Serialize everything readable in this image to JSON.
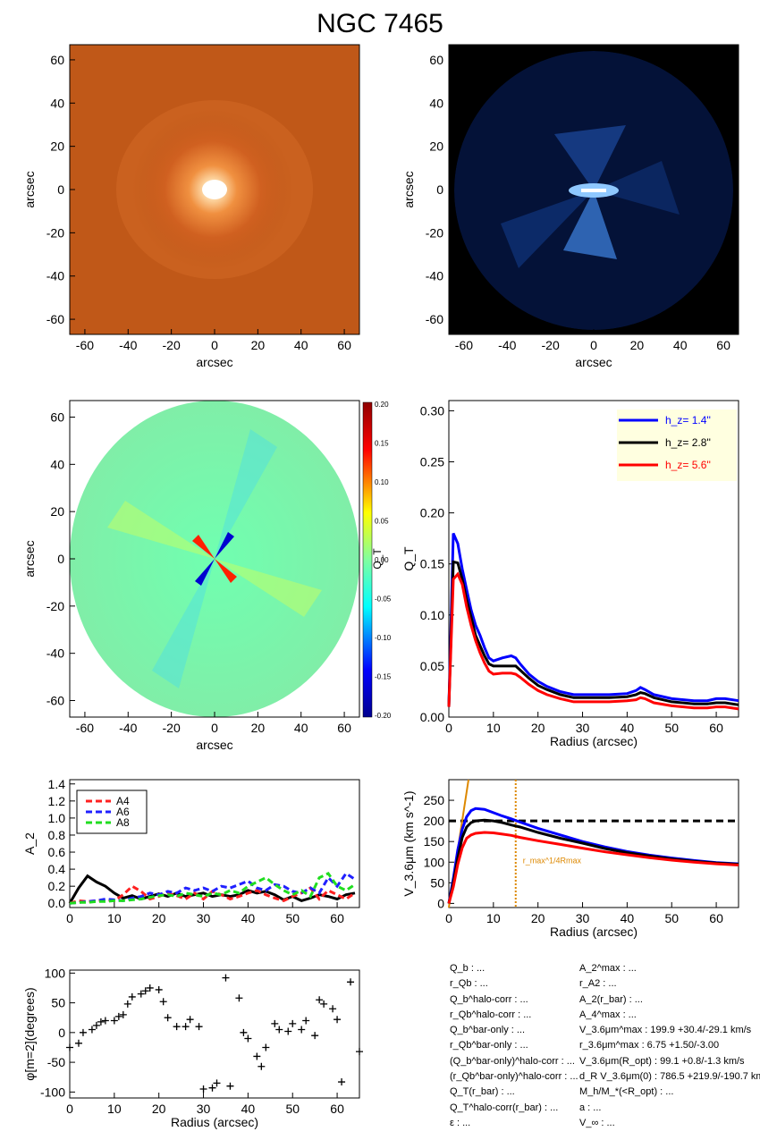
{
  "title": "NGC 7465",
  "panels": {
    "image_left": {
      "xlabel": "arcsec",
      "ylabel": "arcsec",
      "ticks": [
        -60,
        -40,
        -20,
        0,
        20,
        40,
        60
      ]
    },
    "image_right": {
      "xlabel": "arcsec",
      "ylabel": "arcsec",
      "ticks": [
        -60,
        -40,
        -20,
        0,
        20,
        40,
        60
      ]
    },
    "qt_map": {
      "xlabel": "arcsec",
      "ylabel": "arcsec",
      "ticks": [
        -60,
        -40,
        -20,
        0,
        20,
        40,
        60
      ],
      "colorbar_label": "Q_T",
      "colorbar_ticks": [
        "0.20",
        "0.15",
        "0.10",
        "0.05",
        "0.00",
        "-0.05",
        "-0.10",
        "-0.15",
        "-0.20"
      ],
      "colors": {
        "low": "#00008f",
        "mid": "#80ffa0",
        "high": "#8f0000"
      }
    }
  },
  "chart_data": [
    {
      "type": "line",
      "id": "qt_profile",
      "xlabel": "Radius (arcsec)",
      "ylabel": "Q_T",
      "xlim": [
        0,
        65
      ],
      "ylim": [
        0,
        0.31
      ],
      "xticks": [
        0,
        10,
        20,
        30,
        40,
        50,
        60
      ],
      "yticks": [
        "0.00",
        "0.05",
        "0.10",
        "0.15",
        "0.20",
        "0.25",
        "0.30"
      ],
      "legend_position": "top-right",
      "x": [
        0,
        1,
        2,
        3,
        4,
        5,
        6,
        7,
        8,
        9,
        10,
        12,
        14,
        15,
        16,
        18,
        20,
        22,
        25,
        28,
        30,
        33,
        36,
        40,
        42,
        43,
        44,
        46,
        50,
        55,
        58,
        60,
        62,
        65
      ],
      "series": [
        {
          "name": "h_z= 1.4''",
          "color": "#0000ff",
          "values": [
            0.01,
            0.18,
            0.17,
            0.145,
            0.125,
            0.105,
            0.09,
            0.08,
            0.068,
            0.058,
            0.055,
            0.058,
            0.06,
            0.058,
            0.052,
            0.042,
            0.035,
            0.03,
            0.025,
            0.022,
            0.022,
            0.022,
            0.022,
            0.023,
            0.026,
            0.029,
            0.027,
            0.022,
            0.018,
            0.016,
            0.016,
            0.018,
            0.018,
            0.016
          ]
        },
        {
          "name": "h_z= 2.8''",
          "color": "#000000",
          "values": [
            0.01,
            0.152,
            0.151,
            0.135,
            0.115,
            0.098,
            0.08,
            0.07,
            0.06,
            0.052,
            0.05,
            0.05,
            0.05,
            0.05,
            0.046,
            0.038,
            0.031,
            0.027,
            0.022,
            0.019,
            0.019,
            0.019,
            0.019,
            0.02,
            0.022,
            0.024,
            0.023,
            0.019,
            0.015,
            0.013,
            0.013,
            0.014,
            0.014,
            0.012
          ]
        },
        {
          "name": "h_z= 5.6''",
          "color": "#ff0000",
          "values": [
            0.01,
            0.135,
            0.14,
            0.13,
            0.108,
            0.09,
            0.075,
            0.063,
            0.053,
            0.045,
            0.042,
            0.043,
            0.043,
            0.042,
            0.039,
            0.032,
            0.026,
            0.022,
            0.018,
            0.015,
            0.015,
            0.015,
            0.015,
            0.016,
            0.017,
            0.019,
            0.018,
            0.014,
            0.011,
            0.009,
            0.009,
            0.01,
            0.01,
            0.008
          ]
        }
      ]
    },
    {
      "type": "line",
      "id": "fourier_amplitudes",
      "xlabel": "",
      "ylabel": "A_2",
      "xlim": [
        0,
        65
      ],
      "ylim": [
        -0.05,
        1.45
      ],
      "xticks": [
        0,
        10,
        20,
        30,
        40,
        50,
        60
      ],
      "yticks": [
        "0.0",
        "0.2",
        "0.4",
        "0.6",
        "0.8",
        "1.0",
        "1.2",
        "1.4"
      ],
      "legend_position": "top-left",
      "x": [
        0,
        2,
        4,
        6,
        8,
        10,
        12,
        14,
        16,
        18,
        20,
        22,
        24,
        26,
        28,
        30,
        32,
        34,
        36,
        38,
        40,
        42,
        44,
        46,
        48,
        50,
        52,
        54,
        56,
        58,
        60,
        62,
        64
      ],
      "series": [
        {
          "name": "",
          "color": "#000000",
          "dash": false,
          "values": [
            0.0,
            0.18,
            0.32,
            0.25,
            0.2,
            0.12,
            0.06,
            0.09,
            0.05,
            0.08,
            0.11,
            0.08,
            0.12,
            0.08,
            0.1,
            0.12,
            0.08,
            0.1,
            0.08,
            0.1,
            0.15,
            0.12,
            0.14,
            0.1,
            0.04,
            0.08,
            0.03,
            0.06,
            0.1,
            0.08,
            0.05,
            0.1,
            0.12
          ]
        },
        {
          "name": "A4",
          "color": "#ff2020",
          "dash": true,
          "values": [
            0.0,
            0.03,
            0.02,
            0.03,
            0.04,
            0.03,
            0.1,
            0.2,
            0.14,
            0.05,
            0.08,
            0.12,
            0.09,
            0.05,
            0.12,
            0.05,
            0.14,
            0.1,
            0.05,
            0.08,
            0.12,
            0.15,
            0.1,
            0.06,
            0.03,
            0.08,
            0.12,
            0.18,
            0.05,
            0.15,
            0.1,
            0.05,
            0.12
          ]
        },
        {
          "name": "A6",
          "color": "#2020ff",
          "dash": true,
          "values": [
            0.0,
            0.01,
            0.02,
            0.03,
            0.05,
            0.04,
            0.03,
            0.06,
            0.08,
            0.12,
            0.1,
            0.14,
            0.12,
            0.18,
            0.15,
            0.18,
            0.14,
            0.2,
            0.18,
            0.22,
            0.26,
            0.18,
            0.15,
            0.22,
            0.2,
            0.14,
            0.12,
            0.18,
            0.12,
            0.3,
            0.2,
            0.35,
            0.28
          ]
        },
        {
          "name": "A8",
          "color": "#20dd20",
          "dash": true,
          "values": [
            0.0,
            0.01,
            0.01,
            0.02,
            0.02,
            0.03,
            0.03,
            0.04,
            0.05,
            0.07,
            0.09,
            0.1,
            0.08,
            0.12,
            0.1,
            0.08,
            0.12,
            0.1,
            0.15,
            0.12,
            0.2,
            0.25,
            0.3,
            0.22,
            0.15,
            0.1,
            0.15,
            0.08,
            0.3,
            0.35,
            0.2,
            0.15,
            0.22
          ]
        }
      ]
    },
    {
      "type": "line",
      "id": "rotation_curve",
      "xlabel": "Radius (arcsec)",
      "ylabel": "V_3.6μm (km s^-1)",
      "xlim": [
        0,
        65
      ],
      "ylim": [
        -10,
        300
      ],
      "xticks": [
        0,
        10,
        20,
        30,
        40,
        50,
        60
      ],
      "yticks": [
        0,
        50,
        100,
        150,
        200,
        250
      ],
      "vline": {
        "x": 15,
        "label": "r_max^1/4Rmax",
        "color": "#dd8800"
      },
      "hline": {
        "y": 200,
        "color": "#000000"
      },
      "x": [
        0,
        1,
        2,
        3,
        4,
        5,
        6,
        8,
        10,
        12,
        14,
        16,
        20,
        25,
        30,
        35,
        40,
        45,
        50,
        55,
        60,
        65
      ],
      "series": [
        {
          "name": "",
          "color": "#0000ff",
          "values": [
            0,
            60,
            130,
            180,
            210,
            225,
            230,
            228,
            220,
            212,
            205,
            197,
            182,
            166,
            150,
            137,
            126,
            117,
            110,
            104,
            99,
            96
          ]
        },
        {
          "name": "",
          "color": "#000000",
          "values": [
            0,
            50,
            110,
            160,
            185,
            196,
            200,
            202,
            200,
            196,
            190,
            185,
            172,
            158,
            146,
            133,
            123,
            115,
            108,
            102,
            98,
            95
          ]
        },
        {
          "name": "",
          "color": "#ff0000",
          "values": [
            0,
            40,
            95,
            135,
            158,
            166,
            170,
            172,
            171,
            168,
            165,
            160,
            152,
            143,
            134,
            125,
            118,
            111,
            105,
            100,
            96,
            93
          ]
        }
      ]
    },
    {
      "type": "scatter",
      "id": "phase_profile",
      "xlabel": "Radius (arcsec)",
      "ylabel": "φ[m=2](degrees)",
      "xlim": [
        0,
        65
      ],
      "ylim": [
        -110,
        105
      ],
      "xticks": [
        0,
        10,
        20,
        30,
        40,
        50,
        60
      ],
      "yticks": [
        100,
        50,
        0,
        -50,
        -100
      ],
      "x": [
        0,
        2,
        3,
        5,
        6,
        7,
        8,
        10,
        11,
        12,
        13,
        14,
        16,
        17,
        18,
        20,
        21,
        22,
        24,
        26,
        27,
        29,
        30,
        32,
        33,
        35,
        36,
        38,
        39,
        40,
        42,
        43,
        44,
        46,
        47,
        49,
        50,
        52,
        53,
        55,
        56,
        57,
        59,
        60,
        61,
        63,
        65
      ],
      "y": [
        -25,
        -18,
        0,
        5,
        12,
        18,
        20,
        20,
        27,
        30,
        48,
        60,
        65,
        70,
        75,
        72,
        52,
        25,
        10,
        10,
        22,
        10,
        -95,
        -93,
        -85,
        92,
        -90,
        58,
        0,
        -10,
        -40,
        -57,
        -25,
        15,
        5,
        2,
        15,
        5,
        20,
        -5,
        55,
        48,
        40,
        22,
        -83,
        85,
        -32
      ]
    }
  ],
  "params_left": [
    "Q_b : ...",
    "r_Qb : ...",
    "Q_b^halo-corr : ...",
    "r_Qb^halo-corr : ...",
    "Q_b^bar-only : ...",
    "r_Qb^bar-only : ...",
    "(Q_b^bar-only)^halo-corr : ...",
    "(r_Qb^bar-only)^halo-corr : ...",
    "Q_T(r_bar) : ...",
    "Q_T^halo-corr(r_bar) : ...",
    "ε : ..."
  ],
  "params_right": [
    "A_2^max : ...",
    "r_A2 : ...",
    "A_2(r_bar) : ...",
    "A_4^max : ...",
    "V_3.6μm^max :  199.9 +30.4/-29.1 km/s",
    "r_3.6μm^max :  6.75 +1.50/-3.00",
    "V_3.6μm(R_opt) :  99.1 +0.8/-1.3 km/s",
    "d_R V_3.6μm(0) :  786.5 +219.9/-190.7 km/s/kpc",
    "M_h/M_*(<R_opt) : ...",
    "a : ...",
    "V_∞ : ..."
  ]
}
